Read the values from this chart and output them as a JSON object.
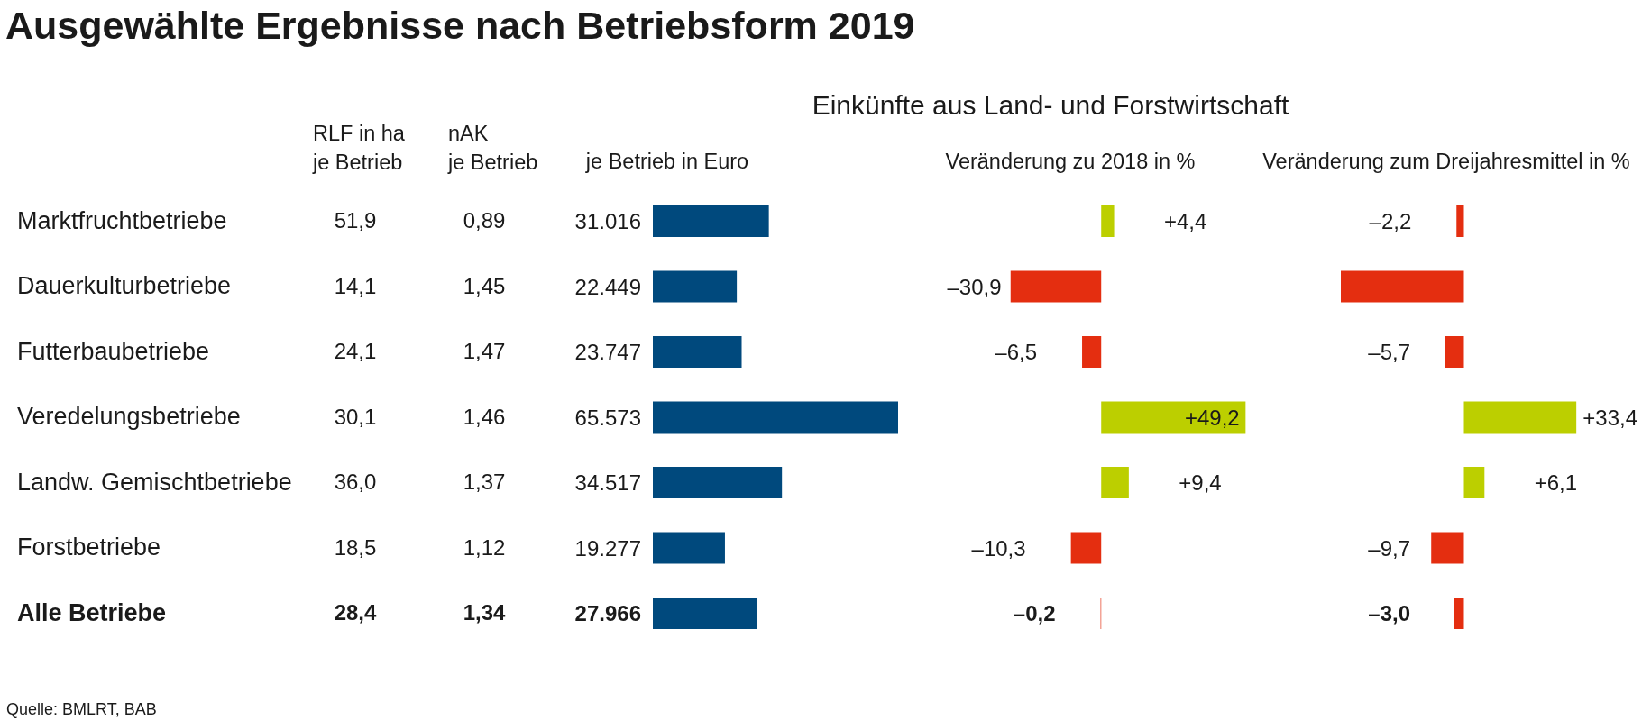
{
  "chart_data": [
    {
      "type": "other",
      "title": "Ausgewählte Ergebnisse nach Betriebsform 2019",
      "categories": [
        "Marktfruchtbetriebe",
        "Dauerkulturbetriebe",
        "Futterbaubetriebe",
        "Veredelungsbetriebe",
        "Landw. Gemischtbetriebe",
        "Forstbetriebe",
        "Alle Betriebe"
      ],
      "series": [
        {
          "name": "RLF in ha\nje Betrieb",
          "values": [
            51.9,
            14.1,
            24.1,
            30.1,
            36.0,
            18.5,
            28.4
          ],
          "value_labels": [
            "51,9",
            "14,1",
            "24,1",
            "30,1",
            "36,0",
            "18,5",
            "28,4"
          ]
        },
        {
          "name": "nAK\nje Betrieb",
          "values": [
            0.89,
            1.45,
            1.47,
            1.46,
            1.37,
            1.12,
            1.34
          ],
          "value_labels": [
            "0,89",
            "1,45",
            "1,47",
            "1,46",
            "1,37",
            "1,12",
            "1,34"
          ]
        }
      ],
      "annotations": [
        "Quelle: BMLRT, BAB"
      ]
    },
    {
      "type": "bar",
      "orientation": "horizontal",
      "title": "Einkünfte aus Land- und Forstwirtschaft",
      "xlabel": "je Betrieb in Euro",
      "categories": [
        null,
        null,
        null,
        null,
        null,
        null,
        null
      ],
      "values": [
        31016,
        22449,
        23747,
        65573,
        34517,
        19277,
        27966
      ],
      "value_labels": [
        "31.016",
        "22.449",
        "23.747",
        "65.573",
        "34.517",
        "19.277",
        "27.966"
      ],
      "color": "#00497d",
      "tick_labels": false
    },
    {
      "type": "bar",
      "orientation": "horizontal",
      "xlabel": "Veränderung zu 2018 in %",
      "categories": [
        null,
        null,
        null,
        null,
        null,
        null,
        null
      ],
      "values": [
        4.4,
        -30.9,
        -6.5,
        49.2,
        9.4,
        -10.3,
        -0.2
      ],
      "value_labels": [
        "+4,4",
        "–30,9",
        "–6,5",
        "+49,2",
        "+9,4",
        "–10,3",
        "–0,2"
      ],
      "colors": [
        "#bccf00",
        "#e42e10",
        "#e42e10",
        "#bccf00",
        "#bccf00",
        "#e42e10",
        "#e42e10"
      ],
      "tick_labels": false
    },
    {
      "type": "bar",
      "orientation": "horizontal",
      "xlabel": "Veränderung zum Dreijahresmittel in %",
      "categories": [
        null,
        null,
        null,
        null,
        null,
        null,
        null
      ],
      "values": [
        -2.2,
        -36.5,
        -5.7,
        33.4,
        6.1,
        -9.7,
        -3.0
      ],
      "value_labels": [
        "–2,2",
        null,
        "–5,7",
        "+33,4",
        "+6,1",
        "–9,7",
        "–3,0"
      ],
      "colors": [
        "#e42e10",
        "#e42e10",
        "#e42e10",
        "#bccf00",
        "#bccf00",
        "#e42e10",
        "#e42e10"
      ],
      "tick_labels": false
    }
  ]
}
